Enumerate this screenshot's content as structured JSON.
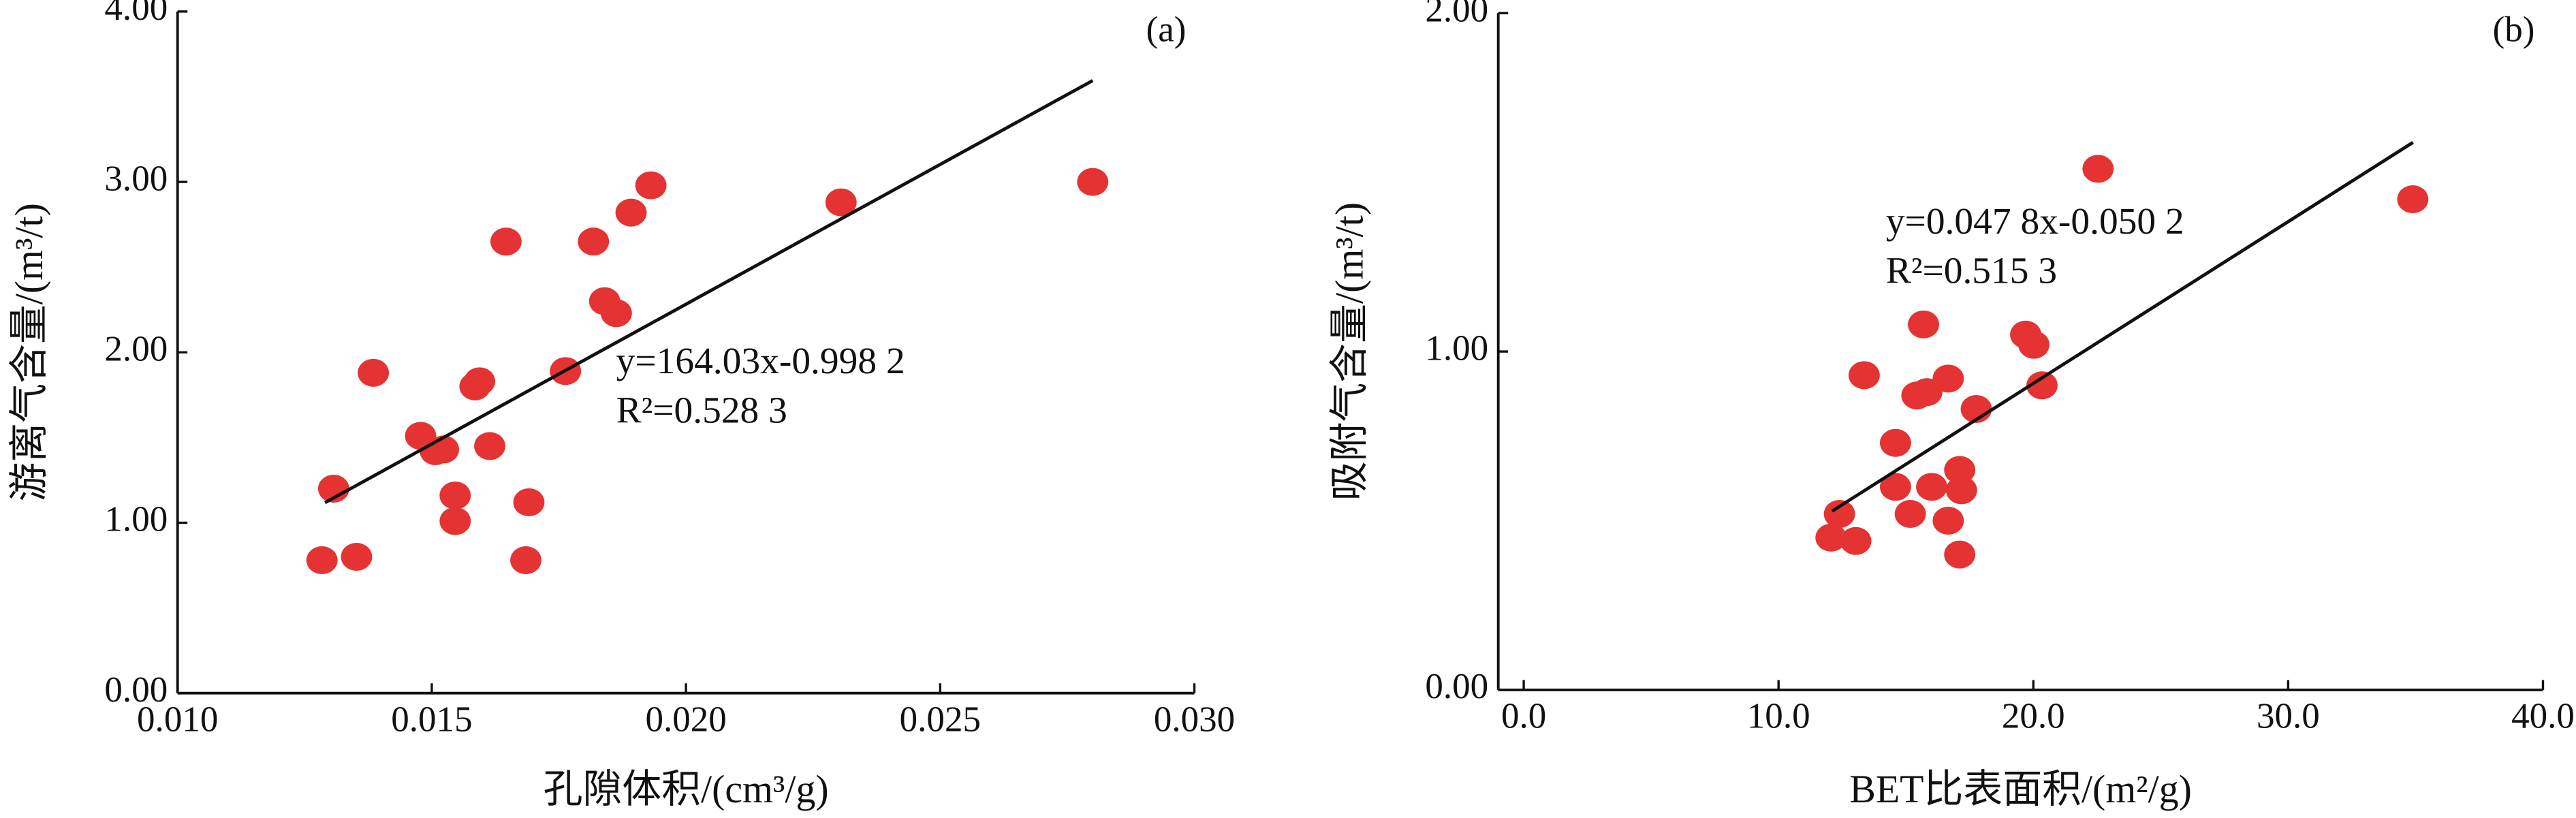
{
  "chart_data": [
    {
      "type": "scatter",
      "panel_label": "(a)",
      "x_label": "孔隙体积/(cm³/g)",
      "y_label": "游离气含量/(m³/t)",
      "xlim": [
        0.01,
        0.03
      ],
      "ylim": [
        0,
        4
      ],
      "xticks": [
        {
          "value": 0.01,
          "label": "0.010"
        },
        {
          "value": 0.015,
          "label": "0.015"
        },
        {
          "value": 0.02,
          "label": "0.020"
        },
        {
          "value": 0.025,
          "label": "0.025"
        },
        {
          "value": 0.03,
          "label": "0.030"
        }
      ],
      "yticks": [
        {
          "value": 0,
          "label": "0.00"
        },
        {
          "value": 1,
          "label": "1.00"
        },
        {
          "value": 2,
          "label": "2.00"
        },
        {
          "value": 3,
          "label": "3.00"
        },
        {
          "value": 4,
          "label": "4.00"
        }
      ],
      "color": "#e53232",
      "x": [
        0.01284,
        0.01307,
        0.01352,
        0.01385,
        0.01478,
        0.01507,
        0.01523,
        0.01546,
        0.01546,
        0.01585,
        0.01594,
        0.01614,
        0.01646,
        0.01685,
        0.01691,
        0.01763,
        0.01818,
        0.0184,
        0.01863,
        0.01892,
        0.01931,
        0.02305,
        0.028
      ],
      "values": [
        0.78,
        1.2,
        0.8,
        1.88,
        1.51,
        1.42,
        1.43,
        1.16,
        1.01,
        1.8,
        1.83,
        1.45,
        2.65,
        0.78,
        1.12,
        1.89,
        2.65,
        2.3,
        2.23,
        2.82,
        2.98,
        2.88,
        3.0
      ],
      "fit": {
        "slope": 164.03,
        "intercept": -0.9982,
        "x_range": [
          0.0129,
          0.028
        ],
        "equation": "y=164.03x-0.998 2",
        "r_squared": "R²=0.528 3"
      }
    },
    {
      "type": "scatter",
      "panel_label": "(b)",
      "x_label": "BET比表面积/(m²/g)",
      "y_label": "吸附气含量/(m³/t)",
      "xlim": [
        -1,
        40
      ],
      "ylim": [
        0,
        2
      ],
      "xticks": [
        {
          "value": 0,
          "label": "0.0"
        },
        {
          "value": 10,
          "label": "10.0"
        },
        {
          "value": 20,
          "label": "20.0"
        },
        {
          "value": 30,
          "label": "30.0"
        },
        {
          "value": 40,
          "label": "40.0"
        }
      ],
      "yticks": [
        {
          "value": 0,
          "label": "0.00"
        },
        {
          "value": 1,
          "label": "1.00"
        },
        {
          "value": 2,
          "label": "2.00"
        }
      ],
      "color": "#e53232",
      "x": [
        12.06,
        12.39,
        13.03,
        13.36,
        14.59,
        14.59,
        15.17,
        15.43,
        15.69,
        15.82,
        16.01,
        16.66,
        16.66,
        17.11,
        17.18,
        17.11,
        17.76,
        19.7,
        20.02,
        20.34,
        22.54,
        34.89
      ],
      "values": [
        0.45,
        0.52,
        0.44,
        0.93,
        0.73,
        0.6,
        0.52,
        0.87,
        1.08,
        0.88,
        0.6,
        0.92,
        0.5,
        0.65,
        0.59,
        0.4,
        0.83,
        1.05,
        1.02,
        0.9,
        1.54,
        1.45
      ],
      "fit": {
        "slope": 0.0478,
        "intercept": -0.0502,
        "x_range": [
          12.1,
          34.9
        ],
        "equation": "y=0.047 8x-0.050 2",
        "r_squared": "R²=0.515 3"
      }
    }
  ]
}
